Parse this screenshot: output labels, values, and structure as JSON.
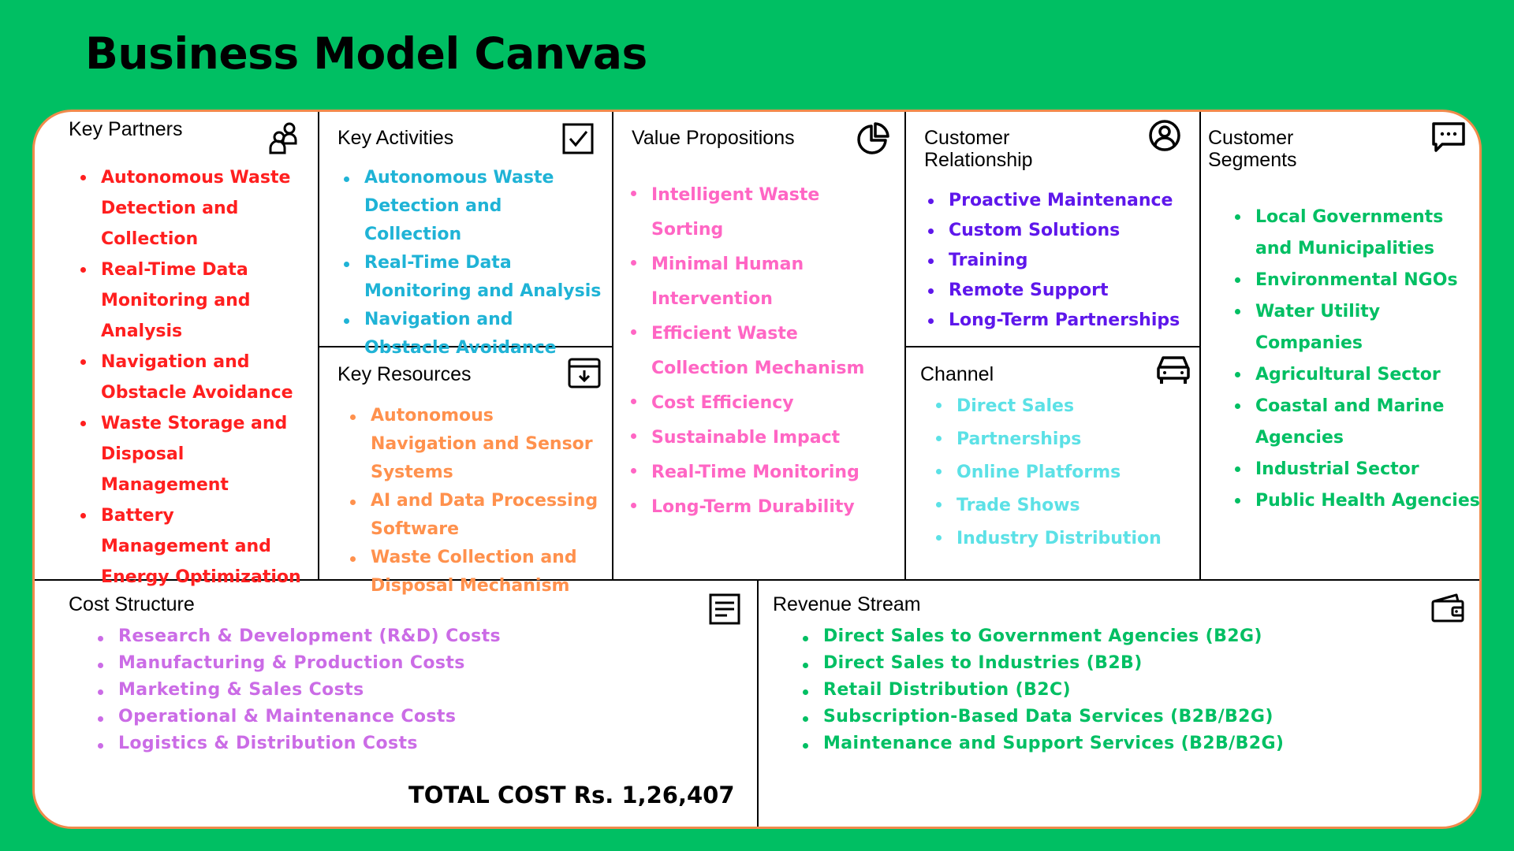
{
  "title": "Business Model Canvas",
  "colors": {
    "background": "#00BF63",
    "canvas_border": "#F08A4B",
    "key_partners": "#FF1F1F",
    "key_activities": "#1FB3D6",
    "key_resources": "#FF914D",
    "value_propositions": "#FF66C4",
    "customer_relationship": "#5E17EB",
    "channel": "#5CE1E6",
    "customer_segments": "#00BF63",
    "cost_structure": "#CB6CE6",
    "revenue_stream": "#00BF63"
  },
  "key_partners": {
    "title": "Key Partners",
    "icon": "partners-icon",
    "items": [
      "Autonomous Waste Detection and Collection",
      "Real-Time Data Monitoring and Analysis",
      "Navigation and Obstacle Avoidance",
      "Waste Storage and Disposal Management",
      "Battery Management and Energy Optimization"
    ]
  },
  "key_activities": {
    "title": "Key Activities",
    "icon": "checkbox-icon",
    "items": [
      "Autonomous Waste Detection and Collection",
      "Real-Time Data Monitoring and Analysis",
      "Navigation and Obstacle Avoidance"
    ]
  },
  "key_resources": {
    "title": "Key Resources",
    "icon": "archive-box-icon",
    "items": [
      "Autonomous Navigation and Sensor Systems",
      "AI and Data Processing Software",
      "Waste Collection and Disposal Mechanism"
    ]
  },
  "value_propositions": {
    "title": "Value Propositions",
    "icon": "pie-chart-icon",
    "items": [
      "Intelligent Waste Sorting",
      "Minimal Human Intervention",
      "Efficient Waste Collection Mechanism",
      "Cost Efficiency",
      "Sustainable Impact",
      "Real-Time Monitoring",
      "Long-Term Durability"
    ]
  },
  "customer_relationship": {
    "title": "Customer Relationship",
    "icon": "user-circle-icon",
    "items": [
      "Proactive Maintenance",
      "Custom Solutions",
      "Training",
      "Remote Support",
      "Long-Term Partnerships"
    ]
  },
  "channel": {
    "title": "Channel",
    "icon": "car-icon",
    "items": [
      "Direct Sales",
      "Partnerships",
      "Online Platforms",
      "Trade Shows",
      "Industry Distribution"
    ]
  },
  "customer_segments": {
    "title": "Customer Segments",
    "icon": "chat-bubble-icon",
    "items": [
      "Local Governments and Municipalities",
      "Environmental NGOs",
      "Water Utility Companies",
      "Agricultural Sector",
      "Coastal and Marine Agencies",
      "Industrial Sector",
      "Public Health Agencies"
    ]
  },
  "cost_structure": {
    "title": "Cost Structure",
    "icon": "document-icon",
    "items": [
      "Research & Development (R&D) Costs",
      "Manufacturing & Production Costs",
      "Marketing & Sales Costs",
      "Operational & Maintenance Costs",
      "Logistics & Distribution Costs"
    ],
    "total": "TOTAL COST Rs. 1,26,407"
  },
  "revenue_stream": {
    "title": "Revenue Stream",
    "icon": "wallet-icon",
    "items": [
      "Direct Sales to Government Agencies (B2G)",
      "Direct Sales to Industries (B2B)",
      "Retail Distribution (B2C)",
      "Subscription-Based Data Services (B2B/B2G)",
      "Maintenance and Support Services (B2B/B2G)"
    ]
  }
}
